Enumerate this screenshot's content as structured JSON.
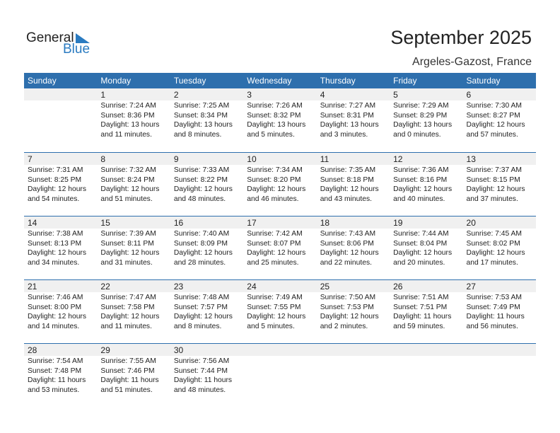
{
  "logo": {
    "general": "General",
    "blue": "Blue"
  },
  "title": "September 2025",
  "location": "Argeles-Gazost, France",
  "days": [
    "Sunday",
    "Monday",
    "Tuesday",
    "Wednesday",
    "Thursday",
    "Friday",
    "Saturday"
  ],
  "weeks": [
    [
      null,
      {
        "day": "1",
        "sunrise": "Sunrise: 7:24 AM",
        "sunset": "Sunset: 8:36 PM",
        "daylight": "Daylight: 13 hours",
        "minutes": "and 11 minutes."
      },
      {
        "day": "2",
        "sunrise": "Sunrise: 7:25 AM",
        "sunset": "Sunset: 8:34 PM",
        "daylight": "Daylight: 13 hours",
        "minutes": "and 8 minutes."
      },
      {
        "day": "3",
        "sunrise": "Sunrise: 7:26 AM",
        "sunset": "Sunset: 8:32 PM",
        "daylight": "Daylight: 13 hours",
        "minutes": "and 5 minutes."
      },
      {
        "day": "4",
        "sunrise": "Sunrise: 7:27 AM",
        "sunset": "Sunset: 8:31 PM",
        "daylight": "Daylight: 13 hours",
        "minutes": "and 3 minutes."
      },
      {
        "day": "5",
        "sunrise": "Sunrise: 7:29 AM",
        "sunset": "Sunset: 8:29 PM",
        "daylight": "Daylight: 13 hours",
        "minutes": "and 0 minutes."
      },
      {
        "day": "6",
        "sunrise": "Sunrise: 7:30 AM",
        "sunset": "Sunset: 8:27 PM",
        "daylight": "Daylight: 12 hours",
        "minutes": "and 57 minutes."
      }
    ],
    [
      {
        "day": "7",
        "sunrise": "Sunrise: 7:31 AM",
        "sunset": "Sunset: 8:25 PM",
        "daylight": "Daylight: 12 hours",
        "minutes": "and 54 minutes."
      },
      {
        "day": "8",
        "sunrise": "Sunrise: 7:32 AM",
        "sunset": "Sunset: 8:24 PM",
        "daylight": "Daylight: 12 hours",
        "minutes": "and 51 minutes."
      },
      {
        "day": "9",
        "sunrise": "Sunrise: 7:33 AM",
        "sunset": "Sunset: 8:22 PM",
        "daylight": "Daylight: 12 hours",
        "minutes": "and 48 minutes."
      },
      {
        "day": "10",
        "sunrise": "Sunrise: 7:34 AM",
        "sunset": "Sunset: 8:20 PM",
        "daylight": "Daylight: 12 hours",
        "minutes": "and 46 minutes."
      },
      {
        "day": "11",
        "sunrise": "Sunrise: 7:35 AM",
        "sunset": "Sunset: 8:18 PM",
        "daylight": "Daylight: 12 hours",
        "minutes": "and 43 minutes."
      },
      {
        "day": "12",
        "sunrise": "Sunrise: 7:36 AM",
        "sunset": "Sunset: 8:16 PM",
        "daylight": "Daylight: 12 hours",
        "minutes": "and 40 minutes."
      },
      {
        "day": "13",
        "sunrise": "Sunrise: 7:37 AM",
        "sunset": "Sunset: 8:15 PM",
        "daylight": "Daylight: 12 hours",
        "minutes": "and 37 minutes."
      }
    ],
    [
      {
        "day": "14",
        "sunrise": "Sunrise: 7:38 AM",
        "sunset": "Sunset: 8:13 PM",
        "daylight": "Daylight: 12 hours",
        "minutes": "and 34 minutes."
      },
      {
        "day": "15",
        "sunrise": "Sunrise: 7:39 AM",
        "sunset": "Sunset: 8:11 PM",
        "daylight": "Daylight: 12 hours",
        "minutes": "and 31 minutes."
      },
      {
        "day": "16",
        "sunrise": "Sunrise: 7:40 AM",
        "sunset": "Sunset: 8:09 PM",
        "daylight": "Daylight: 12 hours",
        "minutes": "and 28 minutes."
      },
      {
        "day": "17",
        "sunrise": "Sunrise: 7:42 AM",
        "sunset": "Sunset: 8:07 PM",
        "daylight": "Daylight: 12 hours",
        "minutes": "and 25 minutes."
      },
      {
        "day": "18",
        "sunrise": "Sunrise: 7:43 AM",
        "sunset": "Sunset: 8:06 PM",
        "daylight": "Daylight: 12 hours",
        "minutes": "and 22 minutes."
      },
      {
        "day": "19",
        "sunrise": "Sunrise: 7:44 AM",
        "sunset": "Sunset: 8:04 PM",
        "daylight": "Daylight: 12 hours",
        "minutes": "and 20 minutes."
      },
      {
        "day": "20",
        "sunrise": "Sunrise: 7:45 AM",
        "sunset": "Sunset: 8:02 PM",
        "daylight": "Daylight: 12 hours",
        "minutes": "and 17 minutes."
      }
    ],
    [
      {
        "day": "21",
        "sunrise": "Sunrise: 7:46 AM",
        "sunset": "Sunset: 8:00 PM",
        "daylight": "Daylight: 12 hours",
        "minutes": "and 14 minutes."
      },
      {
        "day": "22",
        "sunrise": "Sunrise: 7:47 AM",
        "sunset": "Sunset: 7:58 PM",
        "daylight": "Daylight: 12 hours",
        "minutes": "and 11 minutes."
      },
      {
        "day": "23",
        "sunrise": "Sunrise: 7:48 AM",
        "sunset": "Sunset: 7:57 PM",
        "daylight": "Daylight: 12 hours",
        "minutes": "and 8 minutes."
      },
      {
        "day": "24",
        "sunrise": "Sunrise: 7:49 AM",
        "sunset": "Sunset: 7:55 PM",
        "daylight": "Daylight: 12 hours",
        "minutes": "and 5 minutes."
      },
      {
        "day": "25",
        "sunrise": "Sunrise: 7:50 AM",
        "sunset": "Sunset: 7:53 PM",
        "daylight": "Daylight: 12 hours",
        "minutes": "and 2 minutes."
      },
      {
        "day": "26",
        "sunrise": "Sunrise: 7:51 AM",
        "sunset": "Sunset: 7:51 PM",
        "daylight": "Daylight: 11 hours",
        "minutes": "and 59 minutes."
      },
      {
        "day": "27",
        "sunrise": "Sunrise: 7:53 AM",
        "sunset": "Sunset: 7:49 PM",
        "daylight": "Daylight: 11 hours",
        "minutes": "and 56 minutes."
      }
    ],
    [
      {
        "day": "28",
        "sunrise": "Sunrise: 7:54 AM",
        "sunset": "Sunset: 7:48 PM",
        "daylight": "Daylight: 11 hours",
        "minutes": "and 53 minutes."
      },
      {
        "day": "29",
        "sunrise": "Sunrise: 7:55 AM",
        "sunset": "Sunset: 7:46 PM",
        "daylight": "Daylight: 11 hours",
        "minutes": "and 51 minutes."
      },
      {
        "day": "30",
        "sunrise": "Sunrise: 7:56 AM",
        "sunset": "Sunset: 7:44 PM",
        "daylight": "Daylight: 11 hours",
        "minutes": "and 48 minutes."
      },
      null,
      null,
      null,
      null
    ]
  ]
}
